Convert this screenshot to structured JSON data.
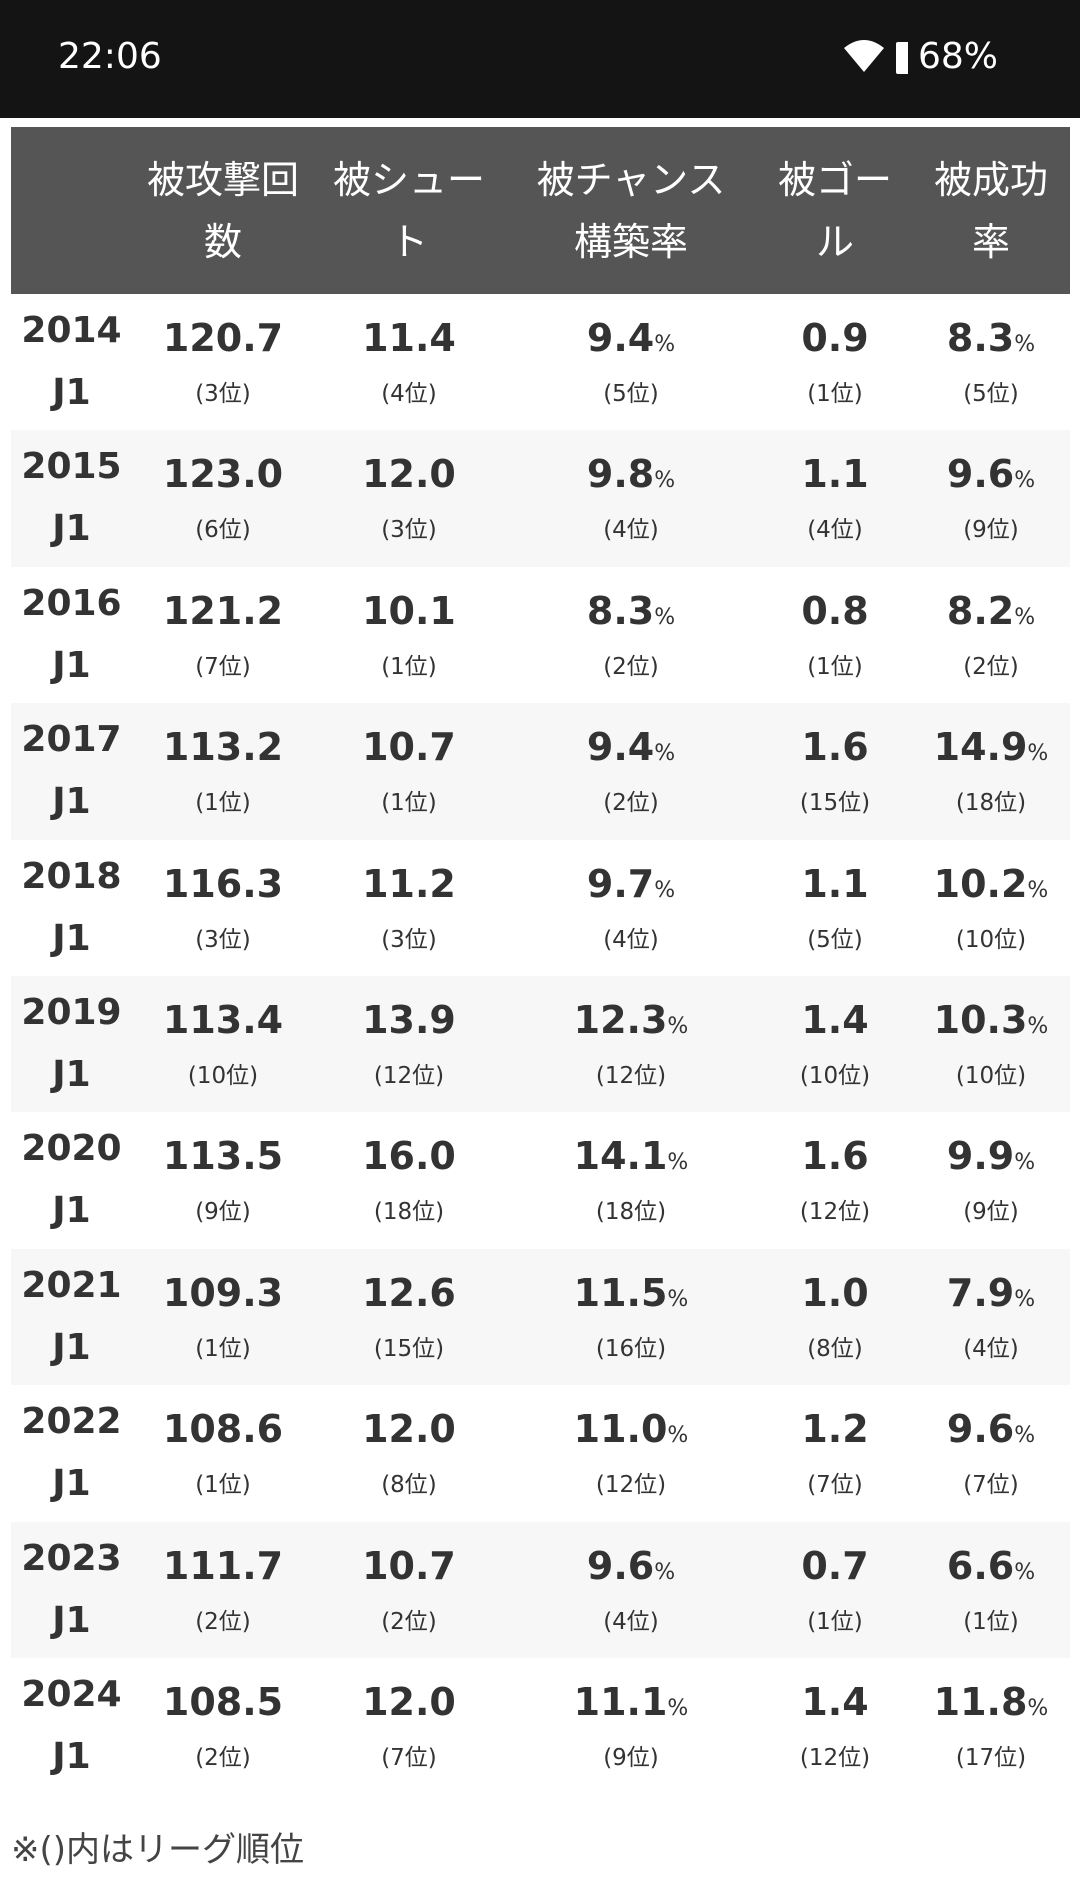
{
  "status_bar": {
    "time": "22:06",
    "battery": "68%"
  },
  "table": {
    "headers": [
      "被攻撃回数",
      "被シュート",
      "被チャンス構築率",
      "被ゴール",
      "被成功率"
    ],
    "rows": [
      {
        "year": "2014",
        "league": "J1",
        "cells": [
          {
            "v": "120.7",
            "r": "(3位)"
          },
          {
            "v": "11.4",
            "r": "(4位)"
          },
          {
            "v": "9.4",
            "u": "%",
            "r": "(5位)"
          },
          {
            "v": "0.9",
            "r": "(1位)"
          },
          {
            "v": "8.3",
            "u": "%",
            "r": "(5位)"
          }
        ]
      },
      {
        "year": "2015",
        "league": "J1",
        "cells": [
          {
            "v": "123.0",
            "r": "(6位)"
          },
          {
            "v": "12.0",
            "r": "(3位)"
          },
          {
            "v": "9.8",
            "u": "%",
            "r": "(4位)"
          },
          {
            "v": "1.1",
            "r": "(4位)"
          },
          {
            "v": "9.6",
            "u": "%",
            "r": "(9位)"
          }
        ]
      },
      {
        "year": "2016",
        "league": "J1",
        "cells": [
          {
            "v": "121.2",
            "r": "(7位)"
          },
          {
            "v": "10.1",
            "r": "(1位)"
          },
          {
            "v": "8.3",
            "u": "%",
            "r": "(2位)"
          },
          {
            "v": "0.8",
            "r": "(1位)"
          },
          {
            "v": "8.2",
            "u": "%",
            "r": "(2位)"
          }
        ]
      },
      {
        "year": "2017",
        "league": "J1",
        "cells": [
          {
            "v": "113.2",
            "r": "(1位)"
          },
          {
            "v": "10.7",
            "r": "(1位)"
          },
          {
            "v": "9.4",
            "u": "%",
            "r": "(2位)"
          },
          {
            "v": "1.6",
            "r": "(15位)"
          },
          {
            "v": "14.9",
            "u": "%",
            "r": "(18位)"
          }
        ]
      },
      {
        "year": "2018",
        "league": "J1",
        "cells": [
          {
            "v": "116.3",
            "r": "(3位)"
          },
          {
            "v": "11.2",
            "r": "(3位)"
          },
          {
            "v": "9.7",
            "u": "%",
            "r": "(4位)"
          },
          {
            "v": "1.1",
            "r": "(5位)"
          },
          {
            "v": "10.2",
            "u": "%",
            "r": "(10位)"
          }
        ]
      },
      {
        "year": "2019",
        "league": "J1",
        "cells": [
          {
            "v": "113.4",
            "r": "(10位)"
          },
          {
            "v": "13.9",
            "r": "(12位)"
          },
          {
            "v": "12.3",
            "u": "%",
            "r": "(12位)"
          },
          {
            "v": "1.4",
            "r": "(10位)"
          },
          {
            "v": "10.3",
            "u": "%",
            "r": "(10位)"
          }
        ]
      },
      {
        "year": "2020",
        "league": "J1",
        "cells": [
          {
            "v": "113.5",
            "r": "(9位)"
          },
          {
            "v": "16.0",
            "r": "(18位)"
          },
          {
            "v": "14.1",
            "u": "%",
            "r": "(18位)"
          },
          {
            "v": "1.6",
            "r": "(12位)"
          },
          {
            "v": "9.9",
            "u": "%",
            "r": "(9位)"
          }
        ]
      },
      {
        "year": "2021",
        "league": "J1",
        "cells": [
          {
            "v": "109.3",
            "r": "(1位)"
          },
          {
            "v": "12.6",
            "r": "(15位)"
          },
          {
            "v": "11.5",
            "u": "%",
            "r": "(16位)"
          },
          {
            "v": "1.0",
            "r": "(8位)"
          },
          {
            "v": "7.9",
            "u": "%",
            "r": "(4位)"
          }
        ]
      },
      {
        "year": "2022",
        "league": "J1",
        "cells": [
          {
            "v": "108.6",
            "r": "(1位)"
          },
          {
            "v": "12.0",
            "r": "(8位)"
          },
          {
            "v": "11.0",
            "u": "%",
            "r": "(12位)"
          },
          {
            "v": "1.2",
            "r": "(7位)"
          },
          {
            "v": "9.6",
            "u": "%",
            "r": "(7位)"
          }
        ]
      },
      {
        "year": "2023",
        "league": "J1",
        "cells": [
          {
            "v": "111.7",
            "r": "(2位)"
          },
          {
            "v": "10.7",
            "r": "(2位)"
          },
          {
            "v": "9.6",
            "u": "%",
            "r": "(4位)"
          },
          {
            "v": "0.7",
            "r": "(1位)"
          },
          {
            "v": "6.6",
            "u": "%",
            "r": "(1位)"
          }
        ]
      },
      {
        "year": "2024",
        "league": "J1",
        "cells": [
          {
            "v": "108.5",
            "r": "(2位)"
          },
          {
            "v": "12.0",
            "r": "(7位)"
          },
          {
            "v": "11.1",
            "u": "%",
            "r": "(9位)"
          },
          {
            "v": "1.4",
            "r": "(12位)"
          },
          {
            "v": "11.8",
            "u": "%",
            "r": "(17位)"
          }
        ]
      }
    ]
  },
  "note": "※()内はリーグ順位"
}
